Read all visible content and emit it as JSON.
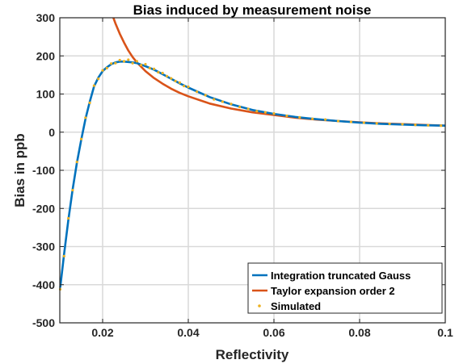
{
  "chart_data": {
    "type": "line",
    "title": "Bias induced by measurement noise",
    "xlabel": "Reflectivity",
    "ylabel": "Bias in ppb",
    "xlim": [
      0.01,
      0.1
    ],
    "ylim": [
      -500,
      300
    ],
    "xticks": [
      0.02,
      0.04,
      0.06,
      0.08,
      0.1
    ],
    "xtick_labels": [
      "0.02",
      "0.04",
      "0.06",
      "0.08",
      "0.1"
    ],
    "yticks": [
      -500,
      -400,
      -300,
      -200,
      -100,
      0,
      100,
      200,
      300
    ],
    "ytick_labels": [
      "-500",
      "-400",
      "-300",
      "-200",
      "-100",
      "0",
      "100",
      "200",
      "300"
    ],
    "grid": true,
    "legend_position": "bottom-right",
    "series": [
      {
        "name": "Integration truncated Gauss",
        "kind": "line",
        "color": "#0072BD",
        "x": [
          0.0101,
          0.011,
          0.012,
          0.013,
          0.014,
          0.015,
          0.016,
          0.017,
          0.018,
          0.019,
          0.02,
          0.021,
          0.022,
          0.023,
          0.024,
          0.025,
          0.026,
          0.027,
          0.028,
          0.03,
          0.032,
          0.034,
          0.036,
          0.038,
          0.04,
          0.045,
          0.05,
          0.055,
          0.06,
          0.065,
          0.07,
          0.075,
          0.08,
          0.085,
          0.09,
          0.095,
          0.1
        ],
        "y": [
          -408,
          -320,
          -230,
          -150,
          -80,
          -20,
          35,
          80,
          120,
          143,
          160,
          170,
          178,
          183,
          185,
          185,
          184,
          183,
          181,
          173,
          164,
          152,
          140,
          128,
          117,
          92,
          73,
          58,
          48,
          40,
          34,
          29,
          25,
          22,
          20,
          18,
          17
        ]
      },
      {
        "name": "Taylor expansion order 2",
        "kind": "line",
        "color": "#D95319",
        "x": [
          0.0225,
          0.023,
          0.024,
          0.025,
          0.026,
          0.027,
          0.028,
          0.03,
          0.032,
          0.034,
          0.036,
          0.038,
          0.04,
          0.045,
          0.05,
          0.055,
          0.06,
          0.065,
          0.07,
          0.075,
          0.08,
          0.085,
          0.09,
          0.095,
          0.1
        ],
        "y": [
          300,
          285,
          258,
          235,
          214,
          197,
          183,
          160,
          142,
          127,
          114,
          103,
          94,
          75,
          62,
          52,
          45,
          38,
          33,
          29,
          26,
          23,
          21,
          19,
          17
        ]
      },
      {
        "name": "Simulated",
        "kind": "scatter",
        "color": "#EDB120",
        "x": [
          0.0101,
          0.011,
          0.012,
          0.013,
          0.014,
          0.015,
          0.016,
          0.017,
          0.018,
          0.019,
          0.02,
          0.021,
          0.022,
          0.023,
          0.024,
          0.025,
          0.026,
          0.027,
          0.028,
          0.029,
          0.03,
          0.031,
          0.032,
          0.033,
          0.034,
          0.035,
          0.036,
          0.037,
          0.038,
          0.039,
          0.04,
          0.042,
          0.044,
          0.046,
          0.048,
          0.05,
          0.052,
          0.054,
          0.056,
          0.058,
          0.06,
          0.063,
          0.066,
          0.069,
          0.072,
          0.075,
          0.078,
          0.081,
          0.084,
          0.087,
          0.09,
          0.093,
          0.096,
          0.099
        ],
        "y": [
          -412,
          -325,
          -226,
          -152,
          -78,
          -18,
          38,
          77,
          122,
          140,
          162,
          168,
          180,
          181,
          189,
          186,
          190,
          181,
          186,
          176,
          178,
          168,
          166,
          157,
          155,
          147,
          141,
          134,
          130,
          121,
          119,
          106,
          97,
          86,
          80,
          74,
          66,
          61,
          55,
          52,
          49,
          43,
          39,
          35,
          33,
          29,
          27,
          25,
          23,
          22,
          21,
          19,
          18,
          17
        ]
      }
    ]
  }
}
